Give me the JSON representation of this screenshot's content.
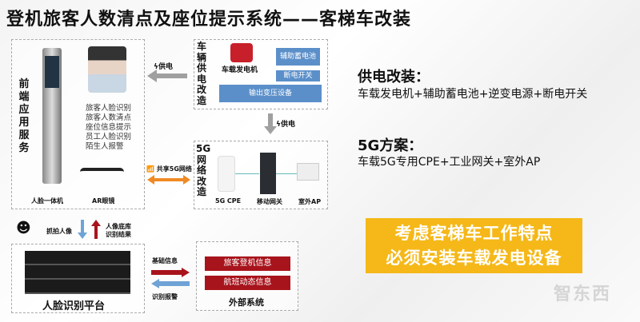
{
  "title": "登机旅客人数清点及座位提示系统——客梯车改装",
  "frontend": {
    "label": "前端应用服务",
    "features": [
      "旅客人脸识别",
      "旅客人数清点",
      "座位信息提示",
      "员工人脸识别",
      "陌生人报警"
    ],
    "device1": "人脸一体机",
    "device2": "AR眼镜"
  },
  "power": {
    "label": "车辆供电改造",
    "generator": "车载发电机",
    "battery": "辅助蓄电池",
    "switch": "断电开关",
    "output": "输出变压设备",
    "arrow_label": "供电"
  },
  "network": {
    "label": "5G网络改造",
    "cpe": "5G CPE",
    "gateway": "移动网关",
    "ap": "室外AP",
    "share_label": "共享5G网络"
  },
  "capture": {
    "up_label": "抓拍人像",
    "down_label": "人像底库识别结果"
  },
  "platform": {
    "label": "人脸识别平台"
  },
  "external": {
    "label": "外部系统",
    "items": [
      "旅客登机信息",
      "航班动态信息"
    ],
    "to_label": "基础信息",
    "from_label": "识别报警"
  },
  "right": {
    "power_heading": "供电改装：",
    "power_text": "车载发电机+辅助蓄电池+逆变电源+断电开关",
    "fiveg_heading": "5G方案：",
    "fiveg_text": "车载5G专用CPE+工业网关+室外AP",
    "callout": [
      "考虑客梯车工作特点",
      "必须安装车载发电设备"
    ]
  },
  "watermark": "智东西",
  "colors": {
    "accent_yellow": "#f5b818",
    "accent_red": "#a8141c",
    "accent_blue": "#5b8fc9",
    "arrow_orange": "#f08a24"
  }
}
